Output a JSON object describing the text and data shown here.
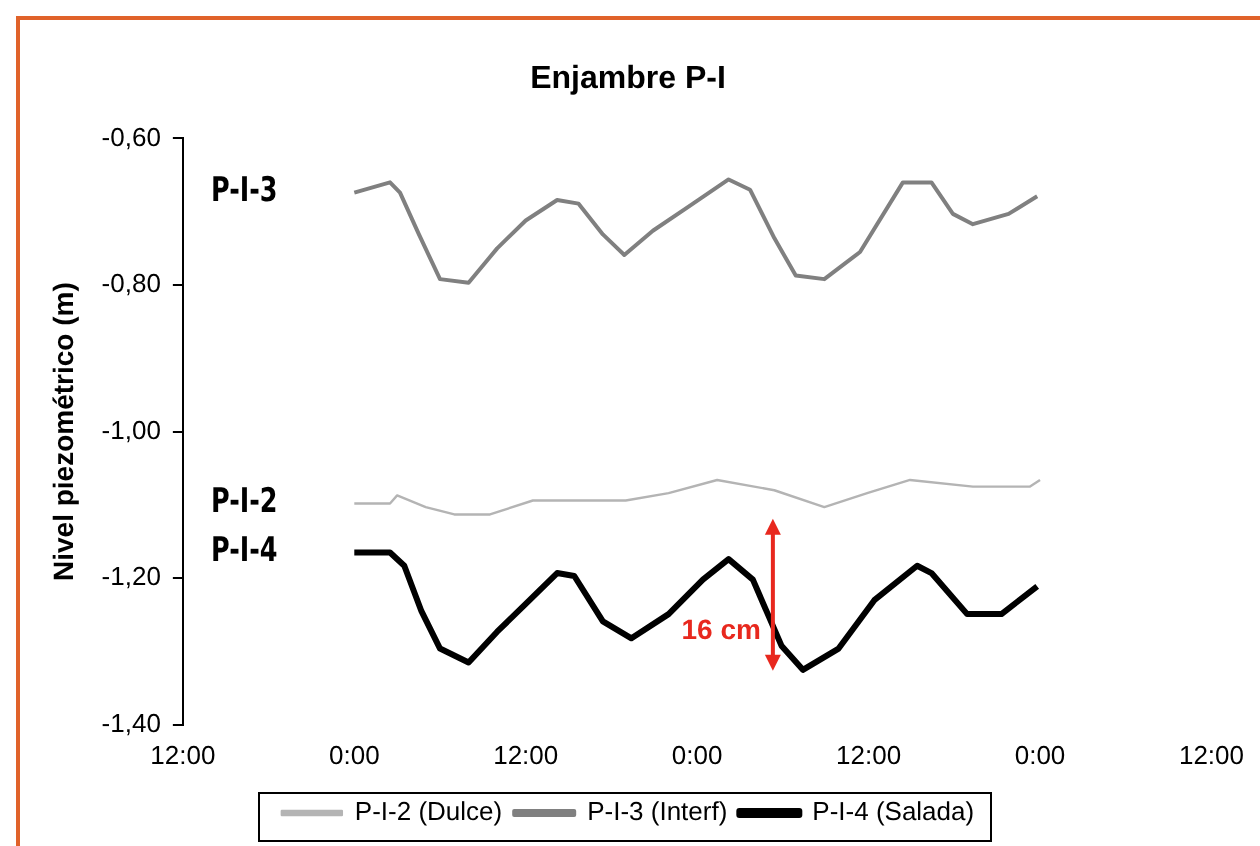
{
  "chart_data": {
    "type": "line",
    "title": "Enjambre P-I",
    "ylabel": "Nivel piezométrico (m)",
    "xlim": [
      "--01-01T12:00",
      "--01-04T12:00"
    ],
    "xticks": [
      {
        "value": "--01-01T12:00",
        "label": "12:00"
      },
      {
        "value": "--01-02T00:00",
        "label": "0:00"
      },
      {
        "value": "--01-02T12:00",
        "label": "12:00"
      },
      {
        "value": "--01-03T00:00",
        "label": "0:00"
      },
      {
        "value": "--01-03T12:00",
        "label": "12:00"
      },
      {
        "value": "--01-04T00:00",
        "label": "0:00"
      },
      {
        "value": "--01-04T12:00",
        "label": "12:00"
      }
    ],
    "ylim": [
      -1.4,
      -0.6
    ],
    "yticks": [
      {
        "value": -1.4,
        "label": "-1,40"
      },
      {
        "value": -1.2,
        "label": "-1,20"
      },
      {
        "value": -1.0,
        "label": "-1,00"
      },
      {
        "value": -0.8,
        "label": "-0,80"
      },
      {
        "value": -0.6,
        "label": "-0,60"
      }
    ],
    "grid": false,
    "legend": "bottom",
    "marker": "none",
    "line_style": "solid",
    "series": [
      {
        "name": "P-I-2 (Dulce)",
        "color": "#b4b4b4",
        "x": [
          "--01-02T00:00",
          "--01-02T02:30",
          "--01-02T03:00",
          "--01-02T05:00",
          "--01-02T07:00",
          "--01-02T09:30",
          "--01-02T12:30",
          "--01-02T19:00",
          "--01-02T22:00",
          "--01-03T01:24",
          "--01-03T05:24",
          "--01-03T08:54",
          "--01-03T11:54",
          "--01-03T14:54",
          "--01-03T19:18",
          "--01-03T23:18",
          "--01-04T00:00"
        ],
        "values": [
          -1.098,
          -1.098,
          -1.087,
          -1.103,
          -1.113,
          -1.113,
          -1.094,
          -1.094,
          -1.084,
          -1.066,
          -1.08,
          -1.103,
          -1.084,
          -1.066,
          -1.075,
          -1.075,
          -1.066
        ]
      },
      {
        "name": "P-I-3 (Interf)",
        "color": "#808080",
        "x": [
          "--01-02T00:00",
          "--01-02T02:30",
          "--01-02T03:12",
          "--01-02T04:30",
          "--01-02T06:00",
          "--01-02T08:00",
          "--01-02T10:00",
          "--01-02T12:00",
          "--01-02T14:12",
          "--01-02T15:42",
          "--01-02T17:24",
          "--01-02T18:54",
          "--01-02T20:54",
          "--01-02T23:24",
          "--01-03T02:12",
          "--01-03T03:42",
          "--01-03T05:24",
          "--01-03T06:54",
          "--01-03T08:54",
          "--01-03T11:24",
          "--01-03T14:24",
          "--01-03T16:24",
          "--01-03T17:54",
          "--01-03T19:18",
          "--01-03T21:48",
          "--01-03T23:48"
        ],
        "values": [
          -0.674,
          -0.66,
          -0.674,
          -0.73,
          -0.792,
          -0.797,
          -0.75,
          -0.712,
          -0.684,
          -0.689,
          -0.731,
          -0.759,
          -0.726,
          -0.693,
          -0.656,
          -0.67,
          -0.736,
          -0.787,
          -0.792,
          -0.755,
          -0.66,
          -0.66,
          -0.703,
          -0.717,
          -0.703,
          -0.679
        ]
      },
      {
        "name": "P-I-4 (Salada)",
        "color": "#000000",
        "x": [
          "--01-02T00:00",
          "--01-02T02:30",
          "--01-02T03:30",
          "--01-02T04:42",
          "--01-02T06:00",
          "--01-02T08:00",
          "--01-02T10:00",
          "--01-02T12:00",
          "--01-02T14:12",
          "--01-02T15:24",
          "--01-02T17:24",
          "--01-02T19:24",
          "--01-02T22:00",
          "--01-03T00:24",
          "--01-03T02:12",
          "--01-03T03:54",
          "--01-03T05:54",
          "--01-03T07:24",
          "--01-03T09:54",
          "--01-03T12:24",
          "--01-03T15:24",
          "--01-03T16:24",
          "--01-03T18:54",
          "--01-03T21:18",
          "--01-03T23:48"
        ],
        "values": [
          -1.165,
          -1.165,
          -1.183,
          -1.245,
          -1.296,
          -1.315,
          -1.273,
          -1.235,
          -1.193,
          -1.197,
          -1.259,
          -1.282,
          -1.249,
          -1.202,
          -1.174,
          -1.202,
          -1.292,
          -1.325,
          -1.296,
          -1.23,
          -1.183,
          -1.193,
          -1.249,
          -1.249,
          -1.211
        ]
      }
    ],
    "annotations": [
      "P-I-3",
      "P-I-2",
      "P-I-4",
      {
        "text": "16 cm",
        "x": "--01-03T05:18",
        "y": -1.25
      }
    ]
  }
}
